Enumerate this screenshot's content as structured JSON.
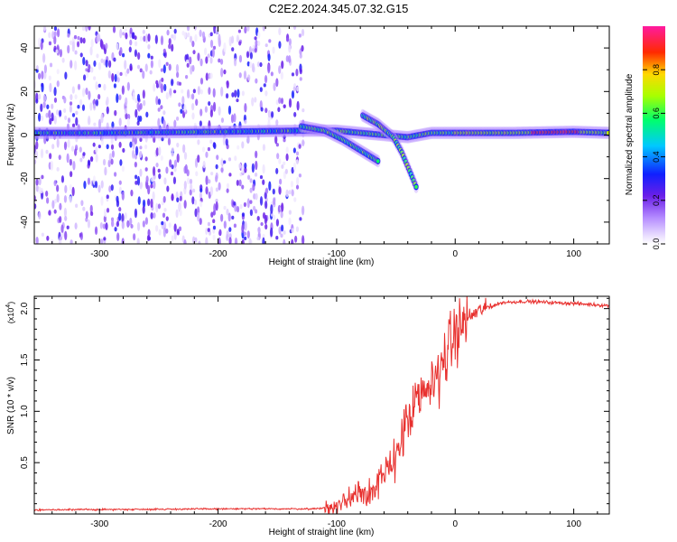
{
  "title": "C2E2.2024.345.07.32.G15",
  "chart_data": [
    {
      "type": "heatmap",
      "xlabel": "Height of straight line (km)",
      "ylabel": "Frequency (Hz)",
      "xlim": [
        -355,
        130
      ],
      "ylim": [
        -50,
        50
      ],
      "x_ticks": [
        -300,
        -200,
        -100,
        0,
        100
      ],
      "x_tick_labels": [
        "-300",
        "-200",
        "-100",
        "0",
        "100"
      ],
      "y_ticks": [
        -40,
        -20,
        0,
        20,
        40
      ],
      "y_tick_labels": [
        "-40",
        "-20",
        "0",
        "20",
        "40"
      ],
      "colorbar": {
        "label": "Normalized spectral amplitude",
        "range": [
          0,
          1
        ],
        "ticks": [
          0.0,
          0.2,
          0.4,
          0.6,
          0.8
        ],
        "tick_labels": [
          "0.0",
          "0.2",
          "0.4",
          "0.6",
          "0.8"
        ],
        "colormap": "rainbow (white-violet-blue-cyan-green-yellow-red-magenta)"
      },
      "features": [
        {
          "name": "noise",
          "x_range": [
            -355,
            -128
          ],
          "y_range": [
            -50,
            50
          ],
          "amplitude": 0.15
        },
        {
          "name": "carrier",
          "points": [
            [
              -355,
              1
            ],
            [
              -300,
              1
            ],
            [
              -200,
              1.5
            ],
            [
              -130,
              2
            ],
            [
              -100,
              2
            ],
            [
              -40,
              -1
            ],
            [
              -20,
              1
            ],
            [
              0,
              1
            ],
            [
              50,
              1
            ],
            [
              100,
              1.5
            ],
            [
              130,
              1
            ]
          ]
        },
        {
          "name": "branch-1",
          "points": [
            [
              -130,
              4
            ],
            [
              -110,
              2
            ],
            [
              -95,
              -2
            ],
            [
              -80,
              -7
            ],
            [
              -65,
              -12
            ]
          ]
        },
        {
          "name": "branch-2",
          "points": [
            [
              -78,
              9
            ],
            [
              -65,
              5
            ],
            [
              -52,
              -1
            ],
            [
              -45,
              -8
            ],
            [
              -38,
              -17
            ],
            [
              -32,
              -25
            ]
          ]
        }
      ]
    },
    {
      "type": "line",
      "xlabel": "Height of straight line (km)",
      "ylabel": "SNR (10 * v/v)",
      "y_scale_label": "(x10",
      "y_scale_exp": "4",
      "xlim": [
        -355,
        130
      ],
      "ylim": [
        0,
        2.12
      ],
      "x_ticks": [
        -300,
        -200,
        -100,
        0,
        100
      ],
      "x_tick_labels": [
        "-300",
        "-200",
        "-100",
        "0",
        "100"
      ],
      "y_ticks": [
        0.5,
        1.0,
        1.5,
        2.0
      ],
      "y_tick_labels": [
        "0.5",
        "1.0",
        "1.5",
        "2.0"
      ],
      "series": [
        {
          "color": "#e8312f",
          "profile": [
            [
              -355,
              0.04
            ],
            [
              -200,
              0.05
            ],
            [
              -120,
              0.05
            ],
            [
              -100,
              0.07
            ],
            [
              -90,
              0.15
            ],
            [
              -80,
              0.25
            ],
            [
              -70,
              0.2
            ],
            [
              -60,
              0.35
            ],
            [
              -50,
              0.6
            ],
            [
              -40,
              0.9
            ],
            [
              -30,
              1.1
            ],
            [
              -20,
              1.25
            ],
            [
              -10,
              1.5
            ],
            [
              0,
              1.75
            ],
            [
              10,
              1.9
            ],
            [
              20,
              1.98
            ],
            [
              30,
              2.02
            ],
            [
              40,
              2.06
            ],
            [
              60,
              2.07
            ],
            [
              80,
              2.06
            ],
            [
              100,
              2.05
            ],
            [
              130,
              2.03
            ]
          ]
        }
      ]
    }
  ]
}
